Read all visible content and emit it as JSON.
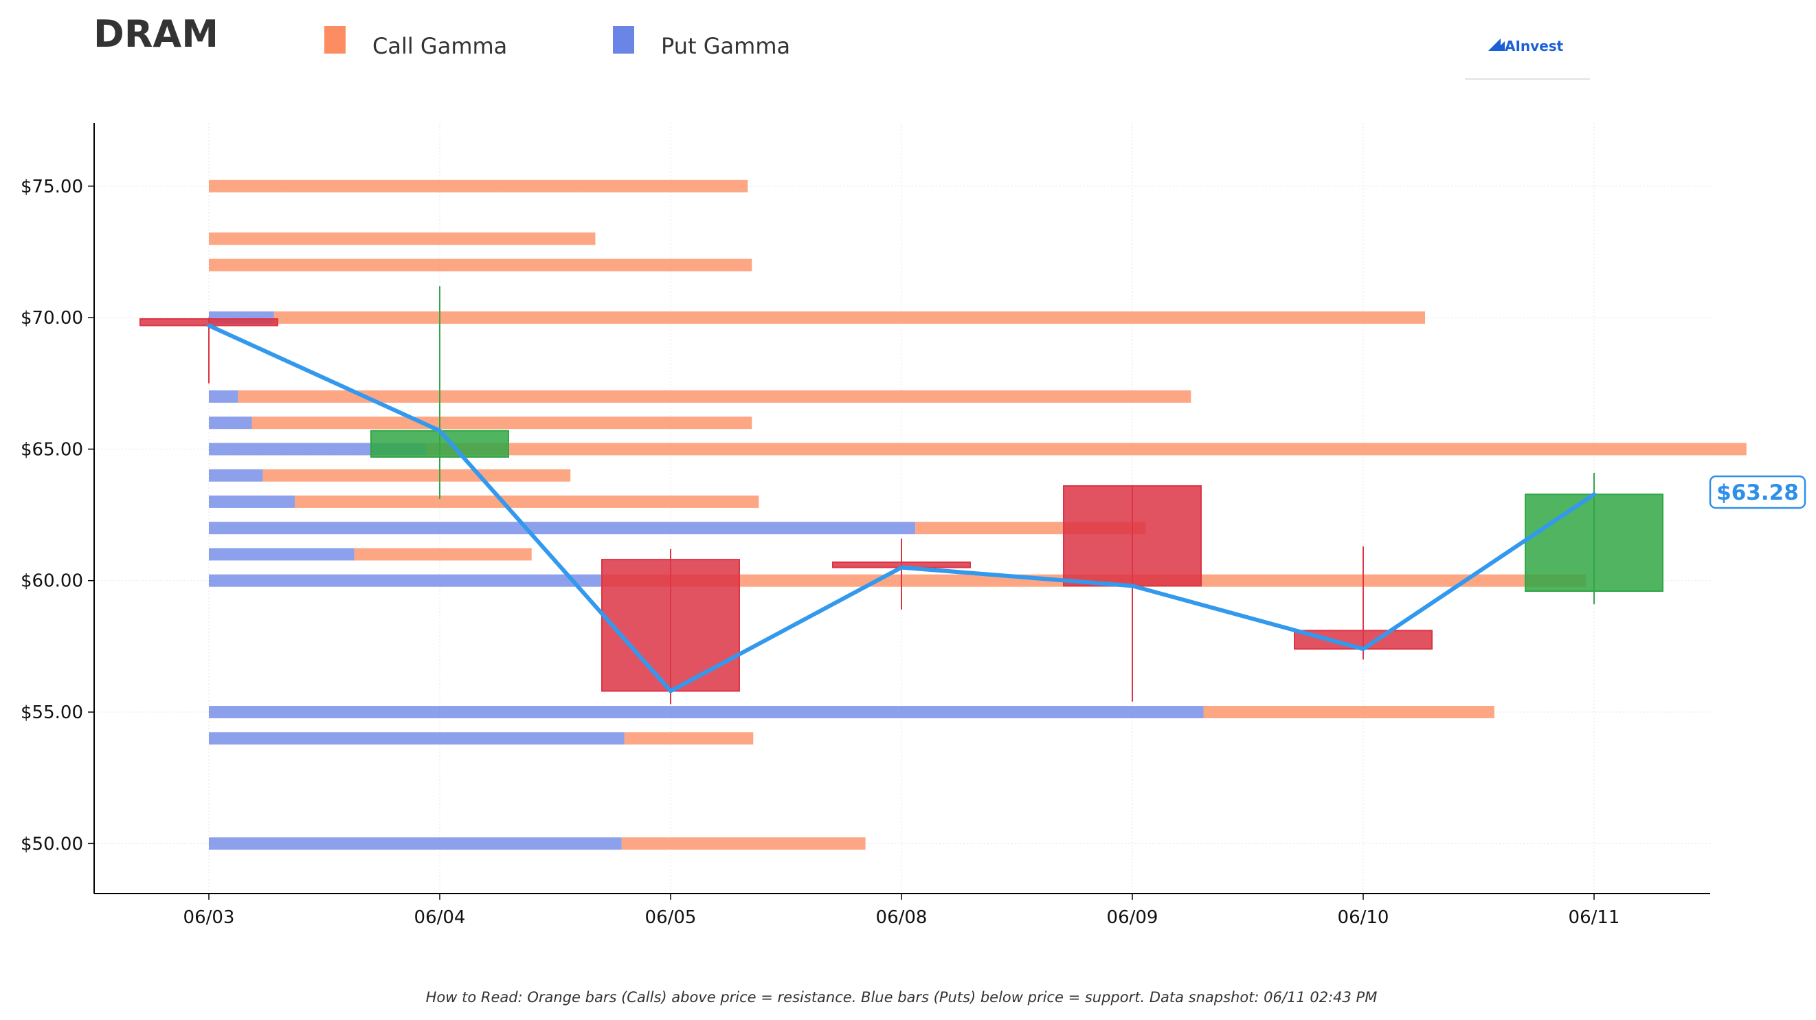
{
  "title": "DRAM",
  "brand": "AInvest",
  "legend": [
    {
      "label": "Call Gamma",
      "color": "#fc8d62"
    },
    {
      "label": "Put Gamma",
      "color": "#6b85e6"
    }
  ],
  "footnote": "How to Read: Orange bars (Calls) above price = resistance. Blue bars (Puts) below price = support. Data snapshot: 06/11 02:43 PM",
  "current_price_label": "$63.28",
  "colors": {
    "call": "#fc8d62",
    "put": "#6b85e6",
    "up": "#31a745",
    "down": "#dc3545",
    "line": "#3399ee"
  },
  "chart_data": {
    "type": "candlestick",
    "x_categories": [
      "06/03",
      "06/04",
      "06/05",
      "06/08",
      "06/09",
      "06/10",
      "06/11"
    ],
    "ylim": [
      48.1,
      77.4
    ],
    "y_ticks": [
      50,
      55,
      60,
      65,
      70,
      75
    ],
    "y_tick_labels": [
      "$50.00",
      "$55.00",
      "$60.00",
      "$65.00",
      "$70.00",
      "$75.00"
    ],
    "grid": true,
    "legend_position": "top-left",
    "candles": [
      {
        "date": "06/03",
        "open": 69.95,
        "high": 70.0,
        "low": 67.5,
        "close": 69.7
      },
      {
        "date": "06/04",
        "open": 64.7,
        "high": 71.2,
        "low": 63.1,
        "close": 65.7
      },
      {
        "date": "06/05",
        "open": 60.8,
        "high": 61.2,
        "low": 55.3,
        "close": 55.8
      },
      {
        "date": "06/08",
        "open": 60.7,
        "high": 61.6,
        "low": 58.9,
        "close": 60.5
      },
      {
        "date": "06/09",
        "open": 63.6,
        "high": 63.6,
        "low": 55.4,
        "close": 59.8
      },
      {
        "date": "06/10",
        "open": 58.1,
        "high": 61.3,
        "low": 57.0,
        "close": 57.4
      },
      {
        "date": "06/11",
        "open": 59.6,
        "high": 64.1,
        "low": 59.1,
        "close": 63.28
      }
    ],
    "close_line": {
      "dates": [
        "06/03",
        "06/04",
        "06/05",
        "06/08",
        "06/09",
        "06/10",
        "06/11"
      ],
      "values": [
        69.7,
        65.7,
        55.8,
        60.5,
        59.8,
        57.4,
        63.28
      ]
    },
    "gamma_bars": {
      "units": "fraction of x-axis span from 06/03",
      "strikes": [
        75,
        73,
        72,
        70,
        67,
        66,
        65,
        64,
        63,
        62,
        61,
        60,
        55,
        54,
        50
      ],
      "put": [
        0.0,
        0.0,
        0.0,
        0.047,
        0.021,
        0.031,
        0.157,
        0.039,
        0.062,
        0.51,
        0.105,
        0.284,
        0.718,
        0.3,
        0.298
      ],
      "call": [
        0.389,
        0.279,
        0.392,
        0.831,
        0.688,
        0.361,
        0.953,
        0.222,
        0.335,
        0.166,
        0.128,
        0.71,
        0.21,
        0.093,
        0.176
      ]
    }
  }
}
